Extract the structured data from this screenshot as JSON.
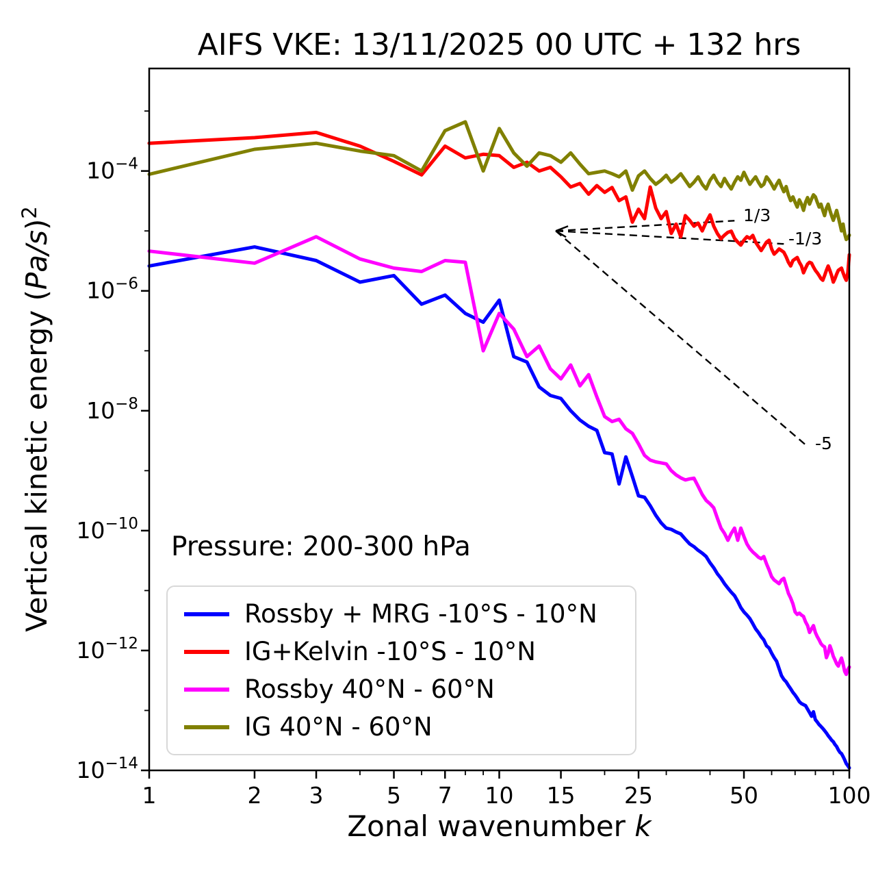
{
  "header": {
    "title": "AIFS VKE: 13/11/2025 00 UTC + 132 hrs"
  },
  "axes": {
    "x_label_prefix": "Zonal wavenumber ",
    "x_label_math": "k",
    "y_label_prefix": "Vertical kinetic energy (",
    "y_label_math": "Pa/s",
    "y_label_close": ")",
    "y_label_exponent": "2"
  },
  "annotations": {
    "pressure": "Pressure: 200-300 hPa"
  },
  "chart_data": {
    "type": "line",
    "x_scale": "log",
    "y_scale": "log",
    "xlim": [
      1,
      100
    ],
    "ylim_log10": [
      -14,
      -2.29
    ],
    "grid": false,
    "legend_position": "lower-left",
    "x_ticks": [
      {
        "value": 1,
        "label": "1"
      },
      {
        "value": 2,
        "label": "2"
      },
      {
        "value": 3,
        "label": "3"
      },
      {
        "value": 5,
        "label": "5"
      },
      {
        "value": 7,
        "label": "7"
      },
      {
        "value": 10,
        "label": "10"
      },
      {
        "value": 15,
        "label": "15"
      },
      {
        "value": 25,
        "label": "25"
      },
      {
        "value": 50,
        "label": "50"
      },
      {
        "value": 100,
        "label": "100"
      }
    ],
    "x_minor_ticks": [
      4,
      6,
      8,
      9,
      20,
      30,
      40,
      60,
      70,
      80,
      90
    ],
    "y_tick_exponents": [
      -4,
      -6,
      -8,
      -10,
      -12,
      -14
    ],
    "y_minor_tick_exponents": [
      -3,
      -5,
      -7,
      -9,
      -11,
      -13
    ],
    "k_values": [
      1,
      2,
      3,
      4,
      5,
      6,
      7,
      8,
      9,
      10,
      11,
      12,
      13,
      14,
      15,
      16,
      17,
      18,
      19,
      20,
      21,
      22,
      23,
      24,
      25,
      26,
      27,
      28,
      29,
      30,
      31,
      32,
      33,
      34,
      35,
      36,
      37,
      38,
      39,
      40,
      41,
      42,
      43,
      44,
      45,
      46,
      47,
      48,
      49,
      50,
      51,
      52,
      53,
      54,
      55,
      56,
      57,
      58,
      59,
      60,
      61,
      62,
      63,
      64,
      65,
      66,
      67,
      68,
      69,
      70,
      71,
      72,
      73,
      74,
      75,
      76,
      77,
      78,
      79,
      80,
      81,
      82,
      83,
      84,
      85,
      86,
      87,
      88,
      89,
      90,
      91,
      92,
      93,
      94,
      95,
      96,
      97,
      98,
      99,
      100
    ],
    "series": [
      {
        "name": "Rossby + MRG -10°S - 10°N",
        "color": "#0000ff",
        "values": [
          2.6e-06,
          5.4e-06,
          3.2e-06,
          1.4e-06,
          1.8e-06,
          6e-07,
          8.5e-07,
          4.2e-07,
          3e-07,
          7e-07,
          8e-08,
          6.5e-08,
          2.5e-08,
          1.8e-08,
          1.6e-08,
          1e-08,
          7e-09,
          5.5e-09,
          4.7e-09,
          2e-09,
          1.9e-09,
          6e-10,
          1.7e-09,
          8e-10,
          3.8e-10,
          3.6e-10,
          2.6e-10,
          1.8e-10,
          1.35e-10,
          1.1e-10,
          1.05e-10,
          9.5e-11,
          8.8e-11,
          7.2e-11,
          6e-11,
          5.4e-11,
          4.7e-11,
          4.2e-11,
          3.7e-11,
          2.9e-11,
          2.4e-11,
          1.9e-11,
          1.6e-11,
          1.3e-11,
          1.1e-11,
          9.4e-12,
          8.2e-12,
          6.6e-12,
          5.2e-12,
          4.4e-12,
          3.9e-12,
          3.4e-12,
          2.8e-12,
          2.3e-12,
          2e-12,
          1.7e-12,
          1.5e-12,
          1.2e-12,
          1.1e-12,
          9e-13,
          7.6e-13,
          6.6e-13,
          5e-13,
          3.8e-13,
          3.3e-13,
          3e-13,
          2.6e-13,
          2.3e-13,
          2e-13,
          1.8e-13,
          1.6e-13,
          1.4e-13,
          1.3e-13,
          1.25e-13,
          1.2e-13,
          1.05e-13,
          9.2e-14,
          8e-14,
          9.5e-14,
          7e-14,
          6.4e-14,
          5.8e-14,
          5.4e-14,
          5e-14,
          4.6e-14,
          4.2e-14,
          3.8e-14,
          3.5e-14,
          3.2e-14,
          3e-14,
          2.7e-14,
          2.5e-14,
          2.2e-14,
          2e-14,
          1.9e-14,
          1.7e-14,
          1.5e-14,
          1.3e-14,
          1.2e-14,
          1.1e-14
        ]
      },
      {
        "name": "IG+Kelvin -10°S - 10°N",
        "color": "#ff0000",
        "values": [
          0.00029,
          0.00036,
          0.00044,
          0.00026,
          0.000145,
          8.6e-05,
          0.00026,
          0.000165,
          0.00019,
          0.00018,
          0.000115,
          0.00014,
          0.0001,
          0.000115,
          8e-05,
          5.4e-05,
          6.2e-05,
          4.1e-05,
          5.7e-05,
          4.4e-05,
          5.3e-05,
          3.2e-05,
          3.7e-05,
          1.4e-05,
          2.3e-05,
          1.6e-05,
          5.4e-05,
          2.4e-05,
          1.6e-05,
          2.1e-05,
          9.1e-06,
          1.3e-05,
          8e-06,
          1.8e-05,
          1.5e-05,
          1.2e-05,
          1.35e-05,
          1e-05,
          1.4e-05,
          1.85e-05,
          1.2e-05,
          9e-06,
          7.4e-06,
          8.5e-06,
          9.5e-06,
          9.9e-06,
          7.5e-06,
          6.5e-06,
          5.8e-06,
          7e-06,
          8e-06,
          7.5e-06,
          8.4e-06,
          6.5e-06,
          5.5e-06,
          4.7e-06,
          5.5e-06,
          6.5e-06,
          7e-06,
          5e-06,
          4.1e-06,
          4.5e-06,
          5e-06,
          4.7e-06,
          4.4e-06,
          3.7e-06,
          3e-06,
          2.6e-06,
          3.2e-06,
          3.4e-06,
          3.6e-06,
          3e-06,
          2.6e-06,
          2e-06,
          2.4e-06,
          2.8e-06,
          3e-06,
          2.9e-06,
          2.5e-06,
          2.2e-06,
          2e-06,
          1.8e-06,
          1.6e-06,
          1.5e-06,
          1.8e-06,
          2.2e-06,
          2.6e-06,
          2.2e-06,
          1.8e-06,
          1.4e-06,
          1.6e-06,
          1.9e-06,
          2.2e-06,
          2.3e-06,
          2.4e-06,
          2e-06,
          1.7e-06,
          1.5e-06,
          2e-06,
          4e-06
        ]
      },
      {
        "name": "Rossby 40°N - 60°N",
        "color": "#ff00ff",
        "values": [
          4.6e-06,
          2.9e-06,
          8e-06,
          3.4e-06,
          2.4e-06,
          2.1e-06,
          3.2e-06,
          3e-06,
          1e-07,
          4.2e-07,
          2.3e-07,
          8e-08,
          1.2e-07,
          5e-08,
          3.4e-08,
          5.8e-08,
          2.6e-08,
          4e-08,
          1.7e-08,
          8e-09,
          6.6e-09,
          7.2e-09,
          5e-09,
          4.2e-09,
          2.8e-09,
          1.8e-09,
          1.5e-09,
          1.4e-09,
          1.35e-09,
          1.3e-09,
          1e-09,
          8.5e-10,
          7.6e-10,
          7e-10,
          7.3e-10,
          7.5e-10,
          5.5e-10,
          4e-10,
          3.2e-10,
          2.8e-10,
          2.4e-10,
          1.6e-10,
          1.1e-10,
          9e-11,
          6.9e-11,
          9e-11,
          1.1e-10,
          6.9e-11,
          1.1e-10,
          8e-11,
          6e-11,
          5e-11,
          4.4e-11,
          4e-11,
          3.6e-11,
          3.4e-11,
          3.7e-11,
          2.8e-11,
          2.2e-11,
          1.7e-11,
          1.5e-11,
          1.4e-11,
          1.3e-11,
          1.5e-11,
          1.6e-11,
          1.2e-11,
          9e-12,
          7.5e-12,
          6e-12,
          4.4e-12,
          4e-12,
          4.2e-12,
          3.9e-12,
          3.7e-12,
          3e-12,
          2.6e-12,
          2e-12,
          2.3e-12,
          2.6e-12,
          2e-12,
          1.7e-12,
          1.5e-12,
          1.3e-12,
          1.2e-12,
          1.15e-12,
          7.6e-13,
          9e-13,
          1.2e-12,
          1e-12,
          8e-13,
          7e-13,
          6e-13,
          5.5e-13,
          6.5e-13,
          7.5e-13,
          6e-13,
          4.5e-13,
          4e-13,
          4.8e-13,
          5.3e-13
        ]
      },
      {
        "name": "IG 40°N - 60°N",
        "color": "#808000",
        "values": [
          8.8e-05,
          0.00023,
          0.00029,
          0.000215,
          0.00018,
          0.0001,
          0.00047,
          0.00066,
          0.0001,
          0.00051,
          0.0002,
          0.00012,
          0.0002,
          0.00018,
          0.00014,
          0.0002,
          0.00013,
          9e-05,
          9.5e-05,
          0.0001,
          9e-05,
          8e-05,
          0.0001,
          4.8e-05,
          8.3e-05,
          0.0001,
          7.5e-05,
          6e-05,
          7e-05,
          8.5e-05,
          6.5e-05,
          7.5e-05,
          9e-05,
          7e-05,
          5.5e-05,
          6.5e-05,
          8e-05,
          6e-05,
          5e-05,
          7e-05,
          8.5e-05,
          6.5e-05,
          5.5e-05,
          7.5e-05,
          6e-05,
          5e-05,
          6.5e-05,
          8e-05,
          7e-05,
          9.5e-05,
          7.5e-05,
          6e-05,
          7e-05,
          8e-05,
          6.5e-05,
          5.5e-05,
          6e-05,
          8e-05,
          7e-05,
          6e-05,
          5e-05,
          6e-05,
          7e-05,
          5.5e-05,
          4.5e-05,
          5.5e-05,
          4e-05,
          3.2e-05,
          3.7e-05,
          3e-05,
          2.5e-05,
          3.3e-05,
          2.8e-05,
          2.2e-05,
          3e-05,
          3.6e-05,
          2.8e-05,
          3.4e-05,
          4e-05,
          3.7e-05,
          3e-05,
          2.5e-05,
          2.8e-05,
          2.2e-05,
          1.8e-05,
          2.4e-05,
          2.8e-05,
          2.2e-05,
          1.8e-05,
          1.5e-05,
          1.8e-05,
          2.2e-05,
          1.7e-05,
          1.3e-05,
          1e-05,
          1.3e-05,
          9e-06,
          7.2e-06,
          7.6e-06,
          8.5e-06
        ]
      }
    ],
    "reference_lines": [
      {
        "label": "1/3",
        "slope": 0.3333,
        "k_start": 14.5,
        "k_end": 47,
        "v_start": 1e-05
      },
      {
        "label": "-1/3",
        "slope": -0.3333,
        "k_start": 14.5,
        "k_end": 65,
        "v_start": 1e-05
      },
      {
        "label": "-5",
        "slope": -5,
        "k_start": 14.5,
        "k_end": 76,
        "v_start": 1e-05
      }
    ]
  },
  "legend": {
    "swatch_colors": [
      "#0000ff",
      "#ff0000",
      "#ff00ff",
      "#808000"
    ]
  }
}
